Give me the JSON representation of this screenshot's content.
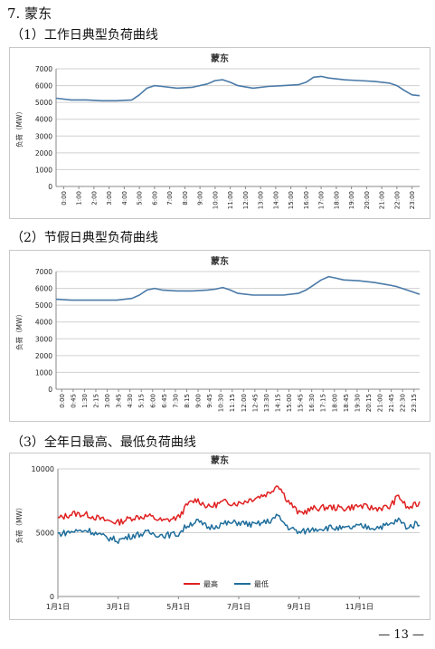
{
  "page": {
    "heading": "7. 蒙东",
    "sections": [
      {
        "label": "（1）工作日典型负荷曲线"
      },
      {
        "label": "（2）节假日典型负荷曲线"
      },
      {
        "label": "（3）全年日最高、最低负荷曲线"
      }
    ],
    "footer": "— 13 —"
  },
  "chart_data": [
    {
      "type": "line",
      "title": "蒙东",
      "ylabel": "负荷（MW）",
      "xlabel": "",
      "ylim": [
        0,
        7000
      ],
      "yticks": [
        0,
        1000,
        2000,
        3000,
        4000,
        5000,
        6000,
        7000
      ],
      "x_ticks": [
        "0:00",
        "1:00",
        "2:00",
        "3:00",
        "4:00",
        "5:00",
        "6:00",
        "7:00",
        "8:00",
        "9:00",
        "10:00",
        "11:00",
        "12:00",
        "13:00",
        "14:00",
        "15:00",
        "16:00",
        "17:00",
        "18:00",
        "19:00",
        "20:00",
        "21:00",
        "22:00",
        "23:00"
      ],
      "grid": true,
      "series": [
        {
          "color": "#4a7aa7",
          "x": [
            0,
            1,
            2,
            3,
            4,
            5,
            5.5,
            6,
            6.5,
            7,
            8,
            9,
            10,
            10.5,
            11,
            11.5,
            12,
            13,
            14,
            15,
            16,
            16.5,
            17,
            17.5,
            18,
            19,
            20,
            21,
            22,
            22.5,
            23,
            23.5,
            24
          ],
          "values": [
            5250,
            5150,
            5150,
            5100,
            5100,
            5150,
            5450,
            5850,
            6000,
            5950,
            5850,
            5900,
            6100,
            6300,
            6350,
            6200,
            6000,
            5850,
            5950,
            6000,
            6050,
            6200,
            6500,
            6550,
            6450,
            6350,
            6300,
            6250,
            6150,
            6000,
            5700,
            5450,
            5400
          ]
        }
      ]
    },
    {
      "type": "line",
      "title": "蒙东",
      "ylabel": "负荷（MW）",
      "xlabel": "",
      "ylim": [
        0,
        7000
      ],
      "yticks": [
        0,
        1000,
        2000,
        3000,
        4000,
        5000,
        6000,
        7000
      ],
      "x_ticks": [
        "0:00",
        "0:45",
        "1:30",
        "2:15",
        "3:00",
        "3:45",
        "4:30",
        "5:15",
        "6:00",
        "6:45",
        "7:30",
        "8:15",
        "9:00",
        "9:45",
        "10:30",
        "11:15",
        "12:00",
        "12:45",
        "13:30",
        "14:15",
        "15:00",
        "15:45",
        "16:30",
        "17:15",
        "18:00",
        "18:45",
        "19:30",
        "20:15",
        "21:00",
        "21:45",
        "22:30",
        "23:15"
      ],
      "grid": true,
      "series": [
        {
          "color": "#4a7aa7",
          "x": [
            0,
            1,
            2,
            3,
            4,
            5,
            5.5,
            6,
            6.5,
            7,
            8,
            9,
            10,
            10.5,
            11,
            11.5,
            12,
            13,
            14,
            15,
            16,
            16.5,
            17,
            17.5,
            18,
            18.5,
            19,
            20,
            21,
            22,
            22.5,
            23,
            23.5,
            24
          ],
          "values": [
            5350,
            5300,
            5300,
            5300,
            5300,
            5400,
            5600,
            5900,
            6000,
            5900,
            5850,
            5850,
            5900,
            5950,
            6050,
            5900,
            5700,
            5600,
            5600,
            5600,
            5700,
            5900,
            6200,
            6500,
            6700,
            6600,
            6500,
            6450,
            6350,
            6200,
            6100,
            5950,
            5800,
            5650
          ]
        }
      ]
    },
    {
      "type": "line",
      "title": "蒙东",
      "ylabel": "负荷（MW）",
      "xlabel": "",
      "ylim": [
        0,
        10000
      ],
      "yticks": [
        0,
        5000,
        10000
      ],
      "x_ticks": [
        "1月1日",
        "3月1日",
        "5月1日",
        "7月1日",
        "9月1日",
        "11月1日"
      ],
      "x_tick_positions_month": [
        0,
        2,
        4,
        6,
        8,
        10
      ],
      "grid": true,
      "legend": "bottom-center",
      "series": [
        {
          "name": "最高",
          "color": "#e02020",
          "x": [
            0,
            0.5,
            1,
            1.5,
            2,
            2.5,
            3,
            3.5,
            4,
            4.3,
            4.6,
            5,
            5.5,
            6,
            6.5,
            7,
            7.3,
            7.6,
            8,
            8.5,
            9,
            9.5,
            10,
            10.5,
            11,
            11.3,
            11.6,
            12
          ],
          "values": [
            6100,
            6500,
            6400,
            6000,
            5800,
            6200,
            6300,
            5900,
            6200,
            7200,
            7600,
            7000,
            7400,
            7300,
            7700,
            8100,
            8800,
            7600,
            6500,
            6900,
            7000,
            6900,
            7100,
            6900,
            7000,
            7900,
            6900,
            7300
          ]
        },
        {
          "name": "最低",
          "color": "#1f6e9c",
          "x": [
            0,
            0.5,
            1,
            1.5,
            2,
            2.5,
            3,
            3.5,
            4,
            4.3,
            4.6,
            5,
            5.5,
            6,
            6.5,
            7,
            7.3,
            7.6,
            8,
            8.5,
            9,
            9.5,
            10,
            10.5,
            11,
            11.3,
            11.6,
            12
          ],
          "values": [
            4900,
            5100,
            5200,
            4700,
            4400,
            4800,
            5000,
            4800,
            4900,
            5600,
            5900,
            5400,
            5700,
            5800,
            5600,
            5900,
            6300,
            5500,
            5000,
            5300,
            5400,
            5300,
            5500,
            5400,
            5600,
            6000,
            5400,
            5800
          ]
        }
      ]
    }
  ]
}
